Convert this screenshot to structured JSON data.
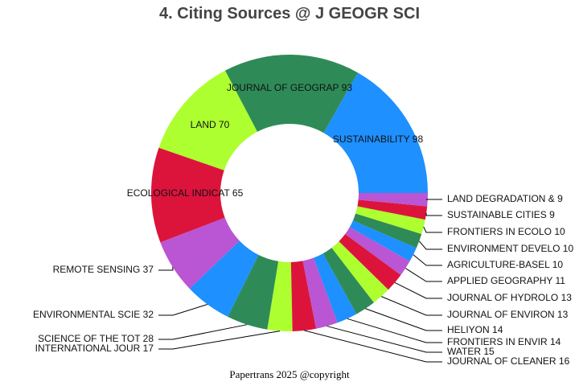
{
  "title": "4. Citing Sources @ J GEOGR SCI",
  "footer": "Papertrans 2025 @copyright",
  "chart_data": {
    "type": "pie",
    "subtype": "donut",
    "title": "4. Citing Sources @ J GEOGR SCI",
    "start_angle_deg": 0,
    "direction": "counterclockwise",
    "inner_radius_ratio": 0.5,
    "categories": [
      "SUSTAINABILITY",
      "JOURNAL OF GEOGRAP",
      "LAND",
      "ECOLOGICAL INDICAT",
      "REMOTE SENSING",
      "ENVIRONMENTAL SCIE",
      "SCIENCE OF THE TOT",
      "INTERNATIONAL JOUR",
      "JOURNAL OF CLEANER",
      "WATER",
      "FRONTIERS IN ENVIR",
      "HELIYON",
      "JOURNAL OF ENVIRON",
      "JOURNAL OF HYDROLO",
      "APPLIED GEOGRAPHY",
      "AGRICULTURE-BASEL",
      "ENVIRONMENT DEVELO",
      "FRONTIERS IN ECOLO",
      "SUSTAINABLE CITIES",
      "LAND DEGRADATION &"
    ],
    "values": [
      98,
      93,
      70,
      65,
      37,
      32,
      28,
      17,
      16,
      15,
      14,
      14,
      13,
      13,
      11,
      10,
      10,
      10,
      9,
      9
    ],
    "colors": [
      "#1e90ff",
      "#2e8b57",
      "#adff2f",
      "#dc143c",
      "#ba55d3",
      "#1e90ff",
      "#2e8b57",
      "#adff2f",
      "#dc143c",
      "#ba55d3",
      "#1e90ff",
      "#2e8b57",
      "#adff2f",
      "#dc143c",
      "#ba55d3",
      "#1e90ff",
      "#2e8b57",
      "#adff2f",
      "#dc143c",
      "#ba55d3"
    ],
    "labels": [
      "SUSTAINABILITY 98",
      "JOURNAL OF GEOGRAP 93",
      "LAND 70",
      "ECOLOGICAL INDICAT 65",
      "REMOTE SENSING 37",
      "ENVIRONMENTAL SCIE 32",
      "SCIENCE OF THE TOT 28",
      "INTERNATIONAL JOUR 17",
      "JOURNAL OF CLEANER 16",
      "WATER 15",
      "FRONTIERS IN ENVIR 14",
      "HELIYON 14",
      "JOURNAL OF ENVIRON 13",
      "JOURNAL OF HYDROLO 13",
      "APPLIED GEOGRAPHY 11",
      "AGRICULTURE-BASEL 10",
      "ENVIRONMENT DEVELO 10",
      "FRONTIERS IN ECOLO 10",
      "SUSTAINABLE CITIES 9",
      "LAND DEGRADATION & 9"
    ],
    "legend": "none"
  }
}
